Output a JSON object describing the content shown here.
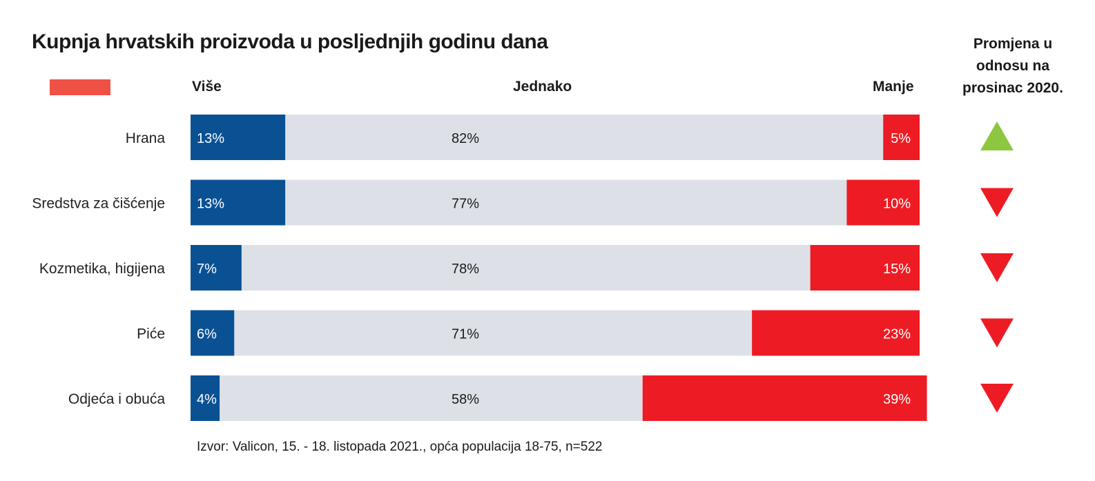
{
  "title": "Kupnja hrvatskih proizvoda u posljednjih godinu dana",
  "legend": {
    "more": "Više",
    "equal": "Jednako",
    "less": "Manje"
  },
  "change_header": [
    "Promjena u",
    "odnosu na",
    "prosinac 2020."
  ],
  "source": "Izvor: Valicon, 15. - 18. listopada 2021., opća populacija 18-75, n=522",
  "colors": {
    "more": "#0a5194",
    "equal": "#dde1e7",
    "less": "#ed1c24",
    "legend_swatch": "#f05146",
    "up": "#8dc63f",
    "down": "#ed1c24"
  },
  "chart_data": {
    "type": "bar",
    "stacked": true,
    "orientation": "horizontal",
    "title": "Kupnja hrvatskih proizvoda u posljednjih godinu dana",
    "categories": [
      "Hrana",
      "Sredstva za čišćenje",
      "Kozmetika, higijena",
      "Piće",
      "Odjeća i obuća"
    ],
    "series": [
      {
        "name": "Više",
        "values": [
          13,
          13,
          7,
          6,
          4
        ],
        "labels": [
          "13%",
          "13%",
          "7%",
          "6%",
          "4%"
        ]
      },
      {
        "name": "Jednako",
        "values": [
          82,
          77,
          78,
          71,
          58
        ],
        "labels": [
          "82%",
          "77%",
          "78%",
          "71%",
          "58%"
        ]
      },
      {
        "name": "Manje",
        "values": [
          5,
          10,
          15,
          23,
          39
        ],
        "labels": [
          "5%",
          "10%",
          "15%",
          "23%",
          "39%"
        ]
      }
    ],
    "change_vs_dec_2020": [
      "up",
      "down",
      "down",
      "down",
      "down"
    ],
    "xlim": [
      0,
      100
    ],
    "grid": false,
    "legend_position": "top"
  }
}
